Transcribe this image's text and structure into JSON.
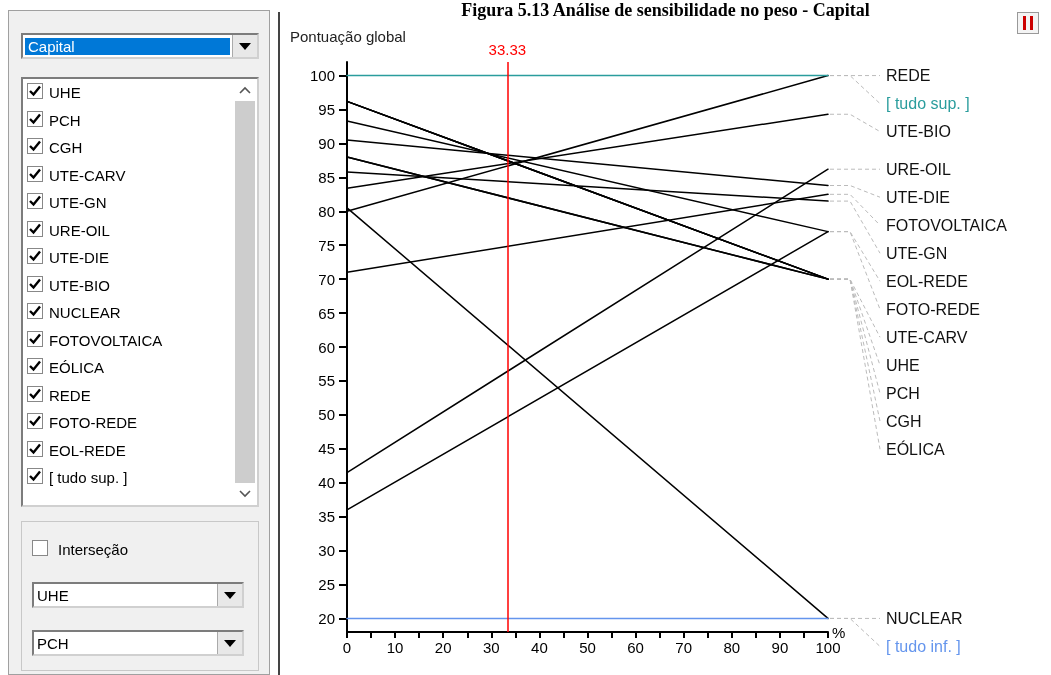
{
  "chart_data": [
    {
      "type": "other",
      "annotations": [
        "Capital",
        "UHE",
        "PCH",
        "CGH",
        "UTE-CARV",
        "UTE-GN",
        "URE-OIL",
        "UTE-DIE",
        "UTE-BIO",
        "NUCLEAR",
        "FOTOVOLTAICA",
        "EÓLICA",
        "REDE",
        "FOTO-REDE",
        "EOL-REDE",
        "[ tudo sup. ]",
        "Interseção",
        "UHE",
        "PCH"
      ]
    },
    {
      "type": "line",
      "title": "Figura 5.13 Análise de sensibilidade no peso - Capital",
      "ylabel": "Pontuação global",
      "xlabel": "%",
      "xlim": [
        0,
        100
      ],
      "xticks": [
        0,
        10,
        20,
        30,
        40,
        50,
        60,
        70,
        80,
        90,
        100
      ],
      "ylim": [
        18,
        102
      ],
      "yticks": [
        20,
        25,
        30,
        35,
        40,
        45,
        50,
        55,
        60,
        65,
        70,
        75,
        80,
        85,
        90,
        95,
        100
      ],
      "x": [
        0,
        100
      ],
      "grid": false,
      "legend": false,
      "marker": "none",
      "line_style": "solid",
      "ref_lines": [
        {
          "axis": "x",
          "value": 33.33,
          "label": "33.33",
          "color": "#ff0000"
        }
      ],
      "series": [
        {
          "name": "REDE",
          "color": "#000000",
          "values": [
            80,
            100
          ]
        },
        {
          "name": "[ tudo sup. ]",
          "color": "#2a9d9d",
          "values": [
            100,
            100
          ]
        },
        {
          "name": "UTE-BIO",
          "color": "#000000",
          "values": [
            83.4,
            94.3
          ]
        },
        {
          "name": "URE-OIL",
          "color": "#000000",
          "values": [
            41.5,
            86.2
          ]
        },
        {
          "name": "UTE-DIE",
          "color": "#000000",
          "values": [
            90.5,
            83.8
          ]
        },
        {
          "name": "FOTOVOLTAICA",
          "color": "#000000",
          "values": [
            71,
            82.5
          ]
        },
        {
          "name": "UTE-GN",
          "color": "#000000",
          "values": [
            85.8,
            81.5
          ]
        },
        {
          "name": "EOL-REDE",
          "color": "#000000",
          "values": [
            93.3,
            77
          ]
        },
        {
          "name": "FOTO-REDE",
          "color": "#000000",
          "values": [
            36,
            77
          ]
        },
        {
          "name": "UTE-CARV",
          "color": "#000000",
          "values": [
            88,
            70
          ]
        },
        {
          "name": "UHE",
          "color": "#000000",
          "values": [
            96.2,
            70
          ]
        },
        {
          "name": "PCH",
          "color": "#000000",
          "values": [
            96.2,
            70
          ]
        },
        {
          "name": "CGH",
          "color": "#000000",
          "values": [
            96.2,
            70
          ]
        },
        {
          "name": "EÓLICA",
          "color": "#000000",
          "values": [
            88,
            70
          ]
        },
        {
          "name": "NUCLEAR",
          "color": "#000000",
          "values": [
            80.5,
            20
          ]
        },
        {
          "name": "[ tudo inf. ]",
          "color": "#6495ed",
          "values": [
            20,
            20
          ]
        }
      ]
    }
  ]
}
